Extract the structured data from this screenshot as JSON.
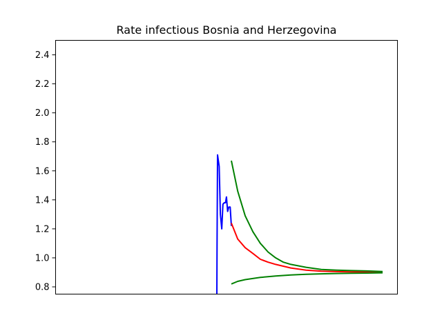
{
  "chart_data": {
    "type": "line",
    "title": "Rate infectious Bosnia and Herzegovina",
    "xlabel": "",
    "ylabel": "",
    "xlim": [
      0,
      100
    ],
    "ylim": [
      0.75,
      2.5
    ],
    "x_ticks_visible": false,
    "y_ticks": [
      0.8,
      1.0,
      1.2,
      1.4,
      1.6,
      1.8,
      2.0,
      2.2,
      2.4
    ],
    "y_tick_labels": [
      "0.8",
      "1.0",
      "1.2",
      "1.4",
      "1.6",
      "1.8",
      "2.0",
      "2.2",
      "2.4"
    ],
    "grid": false,
    "legend": "none",
    "series": [
      {
        "color": "#0000ff",
        "points": [
          [
            29.2,
            0.75
          ],
          [
            29.3,
            1.1
          ],
          [
            29.5,
            1.71
          ],
          [
            30.2,
            1.63
          ],
          [
            30.7,
            1.3
          ],
          [
            31.3,
            1.2
          ],
          [
            31.8,
            1.37
          ],
          [
            32.4,
            1.38
          ],
          [
            32.9,
            1.38
          ],
          [
            33.3,
            1.42
          ],
          [
            33.8,
            1.32
          ],
          [
            34.3,
            1.35
          ],
          [
            34.9,
            1.35
          ],
          [
            35.4,
            1.22
          ]
        ]
      },
      {
        "color": "#ff0000",
        "points": [
          [
            35.4,
            1.24
          ],
          [
            38.1,
            1.13
          ],
          [
            41.3,
            1.07
          ],
          [
            44.6,
            1.03
          ],
          [
            47.8,
            0.99
          ],
          [
            51.1,
            0.97
          ],
          [
            54.3,
            0.955
          ],
          [
            60.8,
            0.93
          ],
          [
            67.3,
            0.915
          ],
          [
            73.8,
            0.908
          ],
          [
            80.3,
            0.905
          ],
          [
            86.8,
            0.903
          ],
          [
            93.3,
            0.902
          ],
          [
            100.0,
            0.9
          ]
        ]
      },
      {
        "color": "#008000",
        "points": [
          [
            35.4,
            1.67
          ],
          [
            38.1,
            1.46
          ],
          [
            41.3,
            1.29
          ],
          [
            44.6,
            1.18
          ],
          [
            47.8,
            1.1
          ],
          [
            51.1,
            1.04
          ],
          [
            54.3,
            1.0
          ],
          [
            57.6,
            0.97
          ],
          [
            60.8,
            0.955
          ],
          [
            67.3,
            0.935
          ],
          [
            73.8,
            0.92
          ],
          [
            80.3,
            0.915
          ],
          [
            86.8,
            0.912
          ],
          [
            93.3,
            0.91
          ],
          [
            100.0,
            0.906
          ]
        ]
      },
      {
        "color": "#008000",
        "points": [
          [
            35.4,
            0.82
          ],
          [
            38.1,
            0.838
          ],
          [
            41.3,
            0.85
          ],
          [
            47.8,
            0.865
          ],
          [
            54.3,
            0.875
          ],
          [
            60.8,
            0.882
          ],
          [
            67.3,
            0.887
          ],
          [
            73.8,
            0.89
          ],
          [
            80.3,
            0.892
          ],
          [
            86.8,
            0.894
          ],
          [
            93.3,
            0.895
          ],
          [
            100.0,
            0.897
          ]
        ]
      }
    ]
  }
}
